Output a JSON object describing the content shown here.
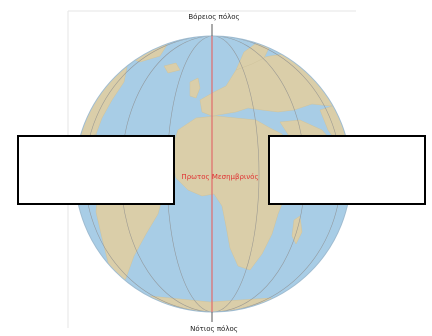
{
  "labels": {
    "north_pole": "Βόρειος πόλος",
    "south_pole": "Νότιος πόλος",
    "prime_meridian": "Πρωτος Μεσημβρινός"
  },
  "colors": {
    "ocean": "#a8cde6",
    "land": "#dacea9",
    "meridian": "#e06a6a",
    "grid": "#8c8c8c",
    "label_red": "#e03333"
  },
  "answer_boxes": [
    "",
    ""
  ]
}
